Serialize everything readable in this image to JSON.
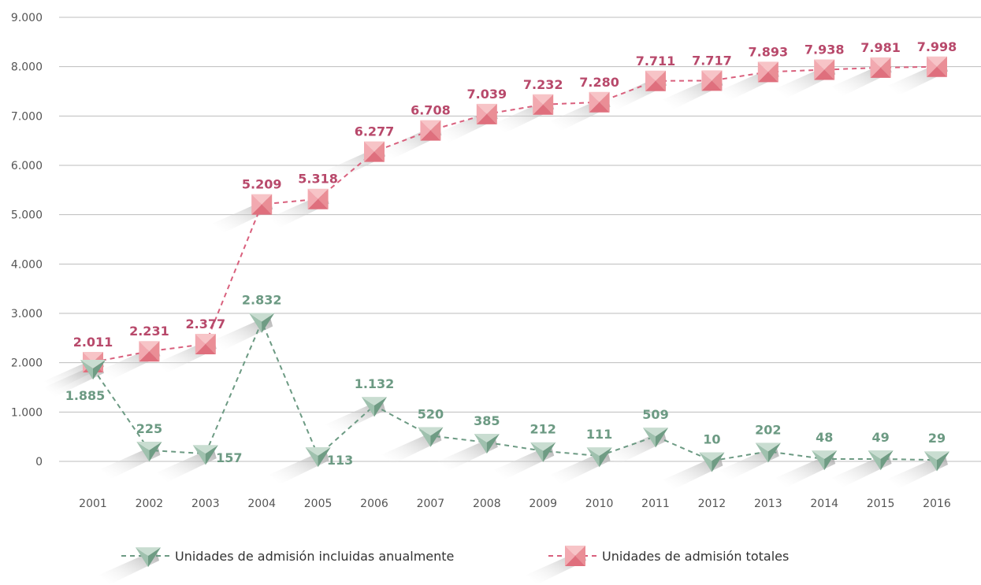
{
  "chart_data": {
    "type": "line",
    "categories": [
      "2001",
      "2002",
      "2003",
      "2004",
      "2005",
      "2006",
      "2007",
      "2008",
      "2009",
      "2010",
      "2011",
      "2012",
      "2013",
      "2014",
      "2015",
      "2016"
    ],
    "y_ticks": [
      "0",
      "1.000",
      "2.000",
      "3.000",
      "4.000",
      "5.000",
      "6.000",
      "7.000",
      "8.000",
      "9.000"
    ],
    "ylim": [
      0,
      9000
    ],
    "grid": true,
    "legend_position": "bottom",
    "series": [
      {
        "name": "Unidades de admisión incluidas anualmente",
        "color": "#6c9a83",
        "marker": "triangle-down",
        "values": [
          1885,
          225,
          157,
          2832,
          113,
          1132,
          520,
          385,
          212,
          111,
          509,
          10,
          202,
          48,
          49,
          29
        ],
        "labels": [
          "1.885",
          "225",
          "157",
          "2.832",
          "113",
          "1.132",
          "520",
          "385",
          "212",
          "111",
          "509",
          "10",
          "202",
          "48",
          "49",
          "29"
        ]
      },
      {
        "name": "Unidades de admisión totales",
        "color": "#d9607d",
        "marker": "square",
        "values": [
          2011,
          2231,
          2377,
          5209,
          5318,
          6277,
          6708,
          7039,
          7232,
          7280,
          7711,
          7717,
          7893,
          7938,
          7981,
          7998
        ],
        "labels": [
          "2.011",
          "2.231",
          "2.377",
          "5.209",
          "5.318",
          "6.277",
          "6.708",
          "7.039",
          "7.232",
          "7.280",
          "7.711",
          "7.717",
          "7.893",
          "7.938",
          "7.981",
          "7.998"
        ]
      }
    ]
  }
}
